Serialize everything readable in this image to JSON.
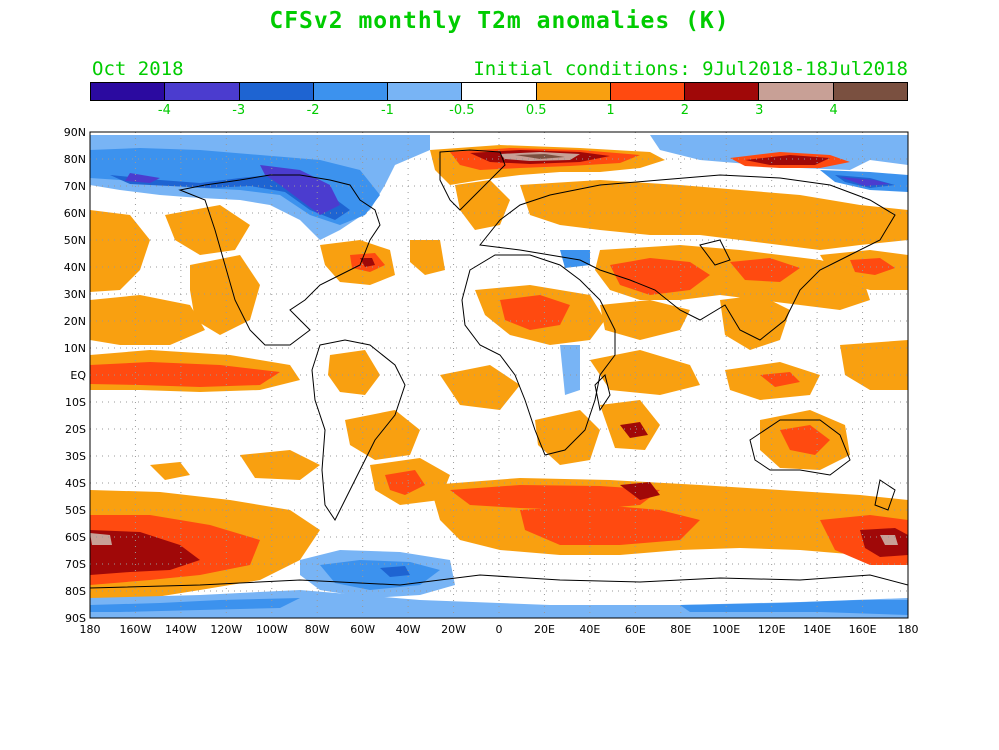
{
  "title": "CFSv2 monthly T2m anomalies (K)",
  "subtitle_left": "Oct 2018",
  "subtitle_right": "Initial conditions: 9Jul2018-18Jul2018",
  "colorbar": {
    "colors": [
      "#2b0aa0",
      "#4b3ccf",
      "#1e64d2",
      "#3c92ee",
      "#78b4f5",
      "#ffffff",
      "#f9a010",
      "#ff4a10",
      "#a00808",
      "#c8a096",
      "#7a5040"
    ],
    "labels": [
      "-4",
      "-3",
      "-2",
      "-1",
      "-0.5",
      "0.5",
      "1",
      "2",
      "3",
      "4"
    ]
  },
  "lat_labels": [
    "90N",
    "80N",
    "70N",
    "60N",
    "50N",
    "40N",
    "30N",
    "20N",
    "10N",
    "EQ",
    "10S",
    "20S",
    "30S",
    "40S",
    "50S",
    "60S",
    "70S",
    "80S",
    "90S"
  ],
  "lon_labels": [
    "180",
    "160W",
    "140W",
    "120W",
    "100W",
    "80W",
    "60W",
    "40W",
    "20W",
    "0",
    "20E",
    "40E",
    "60E",
    "80E",
    "100E",
    "120E",
    "140E",
    "160E",
    "180"
  ],
  "colors": {
    "title": "#00cc00",
    "land_outline": "#000000",
    "grid": "#999999"
  }
}
